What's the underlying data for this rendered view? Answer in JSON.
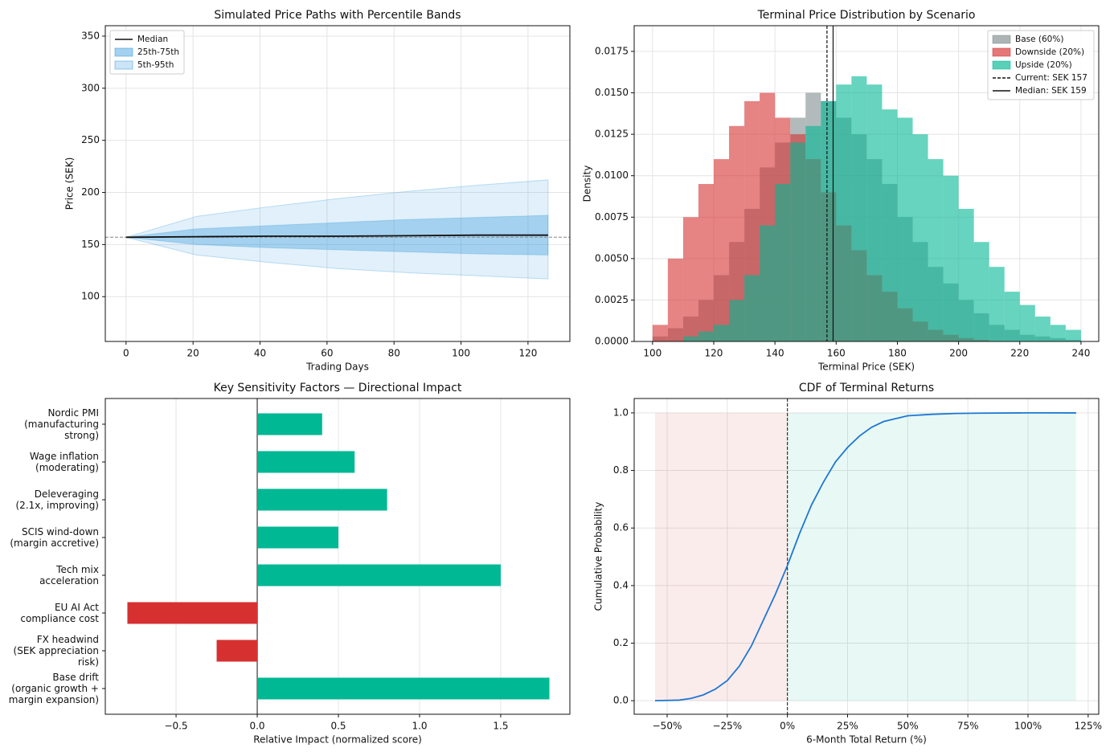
{
  "chart_data": [
    {
      "type": "line",
      "title": "Simulated Price Paths with Percentile Bands",
      "xlabel": "Trading Days",
      "ylabel": "Price (SEK)",
      "x": [
        0,
        21,
        42,
        63,
        84,
        105,
        126
      ],
      "series": [
        {
          "name": "Median",
          "color": "#111111",
          "values": [
            157,
            157.5,
            158,
            158,
            158.5,
            159,
            159
          ]
        }
      ],
      "bands": [
        {
          "name": "25th-75th",
          "color": "#3498db",
          "opacity": 0.35,
          "lower": [
            157,
            150,
            147,
            145,
            143,
            141,
            140
          ],
          "upper": [
            157,
            165,
            168,
            171,
            174,
            176,
            178
          ]
        },
        {
          "name": "5th-95th",
          "color": "#3498db",
          "opacity": 0.15,
          "lower": [
            157,
            140,
            133,
            127,
            123,
            120,
            117
          ],
          "upper": [
            157,
            177,
            186,
            194,
            201,
            207,
            212
          ]
        }
      ],
      "hline": 157,
      "xlim": [
        -6.2,
        132.5
      ],
      "ylim": [
        57,
        360
      ],
      "xticks": [
        0,
        20,
        40,
        60,
        80,
        100,
        120
      ],
      "yticks": [
        100,
        150,
        200,
        250,
        300,
        350
      ],
      "grid": true,
      "legend": "upper left"
    },
    {
      "type": "histogram",
      "title": "Terminal Price Distribution by Scenario",
      "xlabel": "Terminal Price (SEK)",
      "ylabel": "Density",
      "bins": [
        100,
        105,
        110,
        115,
        120,
        125,
        130,
        135,
        140,
        145,
        150,
        155,
        160,
        165,
        170,
        175,
        180,
        185,
        190,
        195,
        200,
        205,
        210,
        215,
        220,
        225,
        230,
        235,
        240
      ],
      "series": [
        {
          "name": "Base (60%)",
          "color": "#7f8c8d",
          "values": [
            0.0003,
            0.0008,
            0.0015,
            0.0025,
            0.004,
            0.006,
            0.008,
            0.0105,
            0.012,
            0.0135,
            0.015,
            0.0145,
            0.0135,
            0.0125,
            0.011,
            0.0095,
            0.0075,
            0.006,
            0.0045,
            0.0035,
            0.0025,
            0.0017,
            0.001,
            0.0007,
            0.0004,
            0.0003,
            0.0002,
            0.0001
          ]
        },
        {
          "name": "Downside (20%)",
          "color": "#d63031",
          "values": [
            0.001,
            0.005,
            0.0075,
            0.0095,
            0.011,
            0.013,
            0.0145,
            0.015,
            0.0135,
            0.0125,
            0.011,
            0.009,
            0.007,
            0.0055,
            0.004,
            0.003,
            0.002,
            0.0012,
            0.0007,
            0.0004,
            0.0002,
            0.0001,
            0,
            0,
            0,
            0,
            0,
            0
          ]
        },
        {
          "name": "Upside (20%)",
          "color": "#00b894",
          "values": [
            0,
            0,
            0.0003,
            0.0006,
            0.001,
            0.0025,
            0.004,
            0.007,
            0.0095,
            0.012,
            0.013,
            0.0145,
            0.0155,
            0.016,
            0.0155,
            0.014,
            0.0135,
            0.0125,
            0.011,
            0.01,
            0.008,
            0.006,
            0.0045,
            0.003,
            0.0022,
            0.0015,
            0.001,
            0.0007
          ]
        }
      ],
      "vlines": [
        {
          "name": "Current: SEK 157",
          "value": 157,
          "dashed": true
        },
        {
          "name": "Median: SEK 159",
          "value": 159,
          "dashed": false
        }
      ],
      "xlim": [
        94,
        245.8
      ],
      "ylim": [
        0,
        0.01905
      ],
      "xticks": [
        100,
        120,
        140,
        160,
        180,
        200,
        220,
        240
      ],
      "yticks": [
        {
          "value": 0,
          "label": "0.0000"
        },
        {
          "value": 0.0025,
          "label": "0.0025"
        },
        {
          "value": 0.005,
          "label": "0.0050"
        },
        {
          "value": 0.0075,
          "label": "0.0075"
        },
        {
          "value": 0.01,
          "label": "0.0100"
        },
        {
          "value": 0.0125,
          "label": "0.0125"
        },
        {
          "value": 0.015,
          "label": "0.0150"
        },
        {
          "value": 0.0175,
          "label": "0.0175"
        }
      ],
      "grid": true,
      "legend": "upper right"
    },
    {
      "type": "barh",
      "title": "Key Sensitivity Factors — Directional Impact",
      "xlabel": "Relative Impact (normalized score)",
      "categories": [
        "Nordic PMI\n(manufacturing\nstrong)",
        "Wage inflation\n(moderating)",
        "Deleveraging\n(2.1x, improving)",
        "SCIS wind-down\n(margin accretive)",
        "Tech mix\nacceleration",
        "EU AI Act\ncompliance cost",
        "FX headwind\n(SEK appreciation\nrisk)",
        "Base drift\n(organic growth +\nmargin expansion)"
      ],
      "values": [
        0.4,
        0.6,
        0.8,
        0.5,
        1.5,
        -0.8,
        -0.25,
        1.8
      ],
      "colors": [
        "#00b894",
        "#00b894",
        "#00b894",
        "#00b894",
        "#00b894",
        "#d63031",
        "#d63031",
        "#00b894"
      ],
      "xlim": [
        -0.936,
        1.926
      ],
      "xticks": [
        {
          "value": -0.5,
          "label": "−0.5"
        },
        {
          "value": 0,
          "label": "0.0"
        },
        0.5,
        {
          "value": 1,
          "label": "1.0"
        },
        1.5
      ],
      "grid": true
    },
    {
      "type": "line",
      "title": "CDF of Terminal Returns",
      "xlabel": "6-Month Total Return (%)",
      "ylabel": "Cumulative Probability",
      "x": [
        -55,
        -45,
        -40,
        -35,
        -30,
        -25,
        -20,
        -15,
        -10,
        -5,
        0,
        5,
        10,
        15,
        20,
        25,
        30,
        35,
        40,
        50,
        60,
        70,
        80,
        100,
        120
      ],
      "series": [
        {
          "name": "CDF",
          "color": "#1f77d4",
          "values": [
            0,
            0.002,
            0.008,
            0.02,
            0.04,
            0.07,
            0.12,
            0.19,
            0.28,
            0.37,
            0.47,
            0.58,
            0.68,
            0.76,
            0.83,
            0.88,
            0.92,
            0.95,
            0.97,
            0.99,
            0.995,
            0.998,
            0.999,
            1,
            1
          ]
        }
      ],
      "regions": [
        {
          "from": -55,
          "to": 0,
          "color": "#d63031"
        },
        {
          "from": 0,
          "to": 120,
          "color": "#00b894"
        }
      ],
      "vline": 0,
      "xlim": [
        -63.7,
        129.4
      ],
      "ylim": [
        -0.047,
        1.05
      ],
      "xticks": [
        {
          "value": -50,
          "label": "−50%"
        },
        {
          "value": -25,
          "label": "−25%"
        },
        {
          "value": 0,
          "label": "0%"
        },
        {
          "value": 25,
          "label": "25%"
        },
        {
          "value": 50,
          "label": "50%"
        },
        {
          "value": 75,
          "label": "75%"
        },
        {
          "value": 100,
          "label": "100%"
        },
        {
          "value": 125,
          "label": "125%"
        }
      ],
      "yticks": [
        {
          "value": 0,
          "label": "0.0"
        },
        0.2,
        0.4,
        0.6,
        0.8,
        {
          "value": 1,
          "label": "1.0"
        }
      ],
      "grid": true
    }
  ]
}
